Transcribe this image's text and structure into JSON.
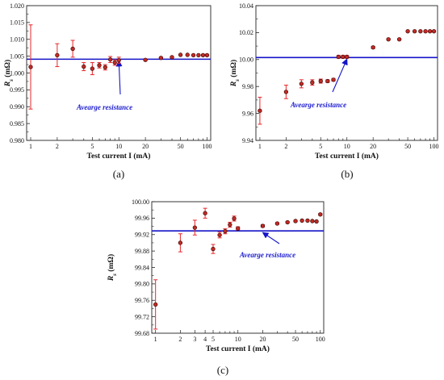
{
  "colors": {
    "line": "#1414c8",
    "error_bar": "#e8262a",
    "marker_fill": "#c42a24",
    "marker_stroke": "#3a0806",
    "arrow": "#1414c8"
  },
  "chart_data": [
    {
      "type": "scatter",
      "panel_label": "(a)",
      "xlabel": "Test current I (mA)",
      "ylabel": "R_s (mΩ)",
      "xscale": "log",
      "xlim": [
        0.9,
        110
      ],
      "ylim": [
        0.98,
        1.02
      ],
      "x_tick_labels": [
        "1",
        "2",
        "5",
        "10",
        "20",
        "50",
        "100"
      ],
      "y_tick_labels": [
        "0.980",
        "0.985",
        "0.990",
        "0.995",
        "1.000",
        "1.005",
        "1.010",
        "1.015",
        "1.020"
      ],
      "average_line": 1.0041,
      "annotation": "Avearge resistance",
      "annotation_arrow_to": [
        10,
        1.0041
      ],
      "points": [
        {
          "x": 1,
          "y": 1.0018,
          "err": 0.0125
        },
        {
          "x": 2,
          "y": 1.0053,
          "err": 0.0034
        },
        {
          "x": 3,
          "y": 1.0072,
          "err": 0.0025
        },
        {
          "x": 4,
          "y": 1.0019,
          "err": 0.0012
        },
        {
          "x": 5,
          "y": 1.0013,
          "err": 0.0018
        },
        {
          "x": 6,
          "y": 1.0023,
          "err": 0.0008
        },
        {
          "x": 7,
          "y": 1.0017,
          "err": 0.0008
        },
        {
          "x": 8,
          "y": 1.004,
          "err": 0.0009
        },
        {
          "x": 9,
          "y": 1.0031,
          "err": 0.0008
        },
        {
          "x": 10,
          "y": 1.0038,
          "err": 0.0009
        },
        {
          "x": 20,
          "y": 1.0039,
          "err": 0.0002
        },
        {
          "x": 30,
          "y": 1.0045,
          "err": 0.0002
        },
        {
          "x": 40,
          "y": 1.0047,
          "err": 0.0002
        },
        {
          "x": 50,
          "y": 1.0054,
          "err": 0
        },
        {
          "x": 60,
          "y": 1.0054,
          "err": 0
        },
        {
          "x": 70,
          "y": 1.0053,
          "err": 0
        },
        {
          "x": 80,
          "y": 1.0053,
          "err": 0
        },
        {
          "x": 90,
          "y": 1.0053,
          "err": 0
        },
        {
          "x": 100,
          "y": 1.0053,
          "err": 0
        }
      ]
    },
    {
      "type": "scatter",
      "panel_label": "(b)",
      "xlabel": "Test current I (mA)",
      "ylabel": "R_s (mΩ)",
      "xscale": "log",
      "xlim": [
        0.9,
        110
      ],
      "ylim": [
        9.94,
        10.04
      ],
      "x_tick_labels": [
        "1",
        "2",
        "5",
        "10",
        "20",
        "50",
        "100"
      ],
      "y_tick_labels": [
        "9.94",
        "9.96",
        "9.98",
        "10.00",
        "10.02",
        "10.04"
      ],
      "average_line": 10.0015,
      "annotation": "Avearge resistance",
      "annotation_arrow_to": [
        10,
        10.0015
      ],
      "points": [
        {
          "x": 1,
          "y": 9.962,
          "err": 0.01
        },
        {
          "x": 2,
          "y": 9.976,
          "err": 0.005
        },
        {
          "x": 3,
          "y": 9.982,
          "err": 0.003
        },
        {
          "x": 4,
          "y": 9.983,
          "err": 0.002
        },
        {
          "x": 5,
          "y": 9.984,
          "err": 0.0015
        },
        {
          "x": 6,
          "y": 9.984,
          "err": 0.001
        },
        {
          "x": 7,
          "y": 9.985,
          "err": 0.001
        },
        {
          "x": 8,
          "y": 10.002,
          "err": 0.001
        },
        {
          "x": 9,
          "y": 10.002,
          "err": 0.001
        },
        {
          "x": 10,
          "y": 10.002,
          "err": 0.001
        },
        {
          "x": 20,
          "y": 10.009,
          "err": 0.0008
        },
        {
          "x": 30,
          "y": 10.015,
          "err": 0.0005
        },
        {
          "x": 40,
          "y": 10.015,
          "err": 0.0005
        },
        {
          "x": 50,
          "y": 10.021,
          "err": 0
        },
        {
          "x": 60,
          "y": 10.021,
          "err": 0
        },
        {
          "x": 70,
          "y": 10.021,
          "err": 0
        },
        {
          "x": 80,
          "y": 10.021,
          "err": 0
        },
        {
          "x": 90,
          "y": 10.021,
          "err": 0
        },
        {
          "x": 100,
          "y": 10.021,
          "err": 0
        }
      ]
    },
    {
      "type": "scatter",
      "panel_label": "(c)",
      "xlabel": "Test current I (mA)",
      "ylabel": "R_s (mΩ)",
      "xscale": "log",
      "xlim": [
        0.9,
        110
      ],
      "ylim": [
        99.68,
        100.0
      ],
      "x_tick_labels": [
        "1",
        "2",
        "3",
        "4",
        "5",
        "10",
        "20",
        "50",
        "100"
      ],
      "y_tick_labels": [
        "99.68",
        "99.72",
        "99.76",
        "99.80",
        "99.84",
        "99.88",
        "99.92",
        "99.96",
        "100.00"
      ],
      "average_line": 99.929,
      "annotation": "Avearge resistance",
      "annotation_arrow_to": [
        20,
        99.929
      ],
      "points": [
        {
          "x": 1,
          "y": 99.75,
          "err": 0.06
        },
        {
          "x": 2,
          "y": 99.9,
          "err": 0.022
        },
        {
          "x": 3,
          "y": 99.937,
          "err": 0.018
        },
        {
          "x": 4,
          "y": 99.972,
          "err": 0.012
        },
        {
          "x": 5,
          "y": 99.885,
          "err": 0.011
        },
        {
          "x": 6,
          "y": 99.919,
          "err": 0.007
        },
        {
          "x": 7,
          "y": 99.928,
          "err": 0.006
        },
        {
          "x": 8,
          "y": 99.944,
          "err": 0.006
        },
        {
          "x": 9,
          "y": 99.959,
          "err": 0.006
        },
        {
          "x": 10,
          "y": 99.935,
          "err": 0.004
        },
        {
          "x": 20,
          "y": 99.941,
          "err": 0.003
        },
        {
          "x": 30,
          "y": 99.947,
          "err": 0.002
        },
        {
          "x": 40,
          "y": 99.95,
          "err": 0.002
        },
        {
          "x": 50,
          "y": 99.953,
          "err": 0.002
        },
        {
          "x": 60,
          "y": 99.954,
          "err": 0
        },
        {
          "x": 70,
          "y": 99.954,
          "err": 0
        },
        {
          "x": 80,
          "y": 99.953,
          "err": 0
        },
        {
          "x": 90,
          "y": 99.952,
          "err": 0
        },
        {
          "x": 100,
          "y": 99.969,
          "err": 0.002
        }
      ]
    }
  ]
}
